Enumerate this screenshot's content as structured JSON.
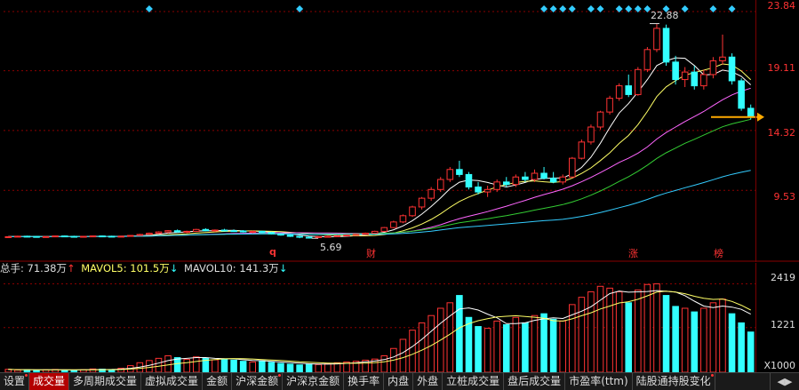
{
  "price_axis": {
    "labels": [
      "23.84",
      "19.11",
      "14.32",
      "9.53"
    ],
    "color": "#ff3333"
  },
  "volume_axis": {
    "labels": [
      "2419",
      "1221",
      "X1000"
    ]
  },
  "annotations": {
    "high_label": "22.88",
    "low_label": "5.69",
    "current_price_hint": "15.4"
  },
  "event_markers": {
    "q": "q",
    "cai": "财",
    "zhang": "涨",
    "bang": "榜"
  },
  "volume_header": {
    "total_label": "总手: 71.38万",
    "total_arrow": "↑",
    "ma5_label": "MAVOL5: 101.5万",
    "ma5_arrow": "↓",
    "ma10_label": "MAVOL10: 141.3万",
    "ma10_arrow": "↓"
  },
  "tabs": [
    {
      "label": "设置",
      "dot": true
    },
    {
      "label": "成交量",
      "active": true
    },
    {
      "label": "多周期成交量"
    },
    {
      "label": "虚拟成交量"
    },
    {
      "label": "金额"
    },
    {
      "label": "沪深金额",
      "dot": true
    },
    {
      "label": "沪深京金额"
    },
    {
      "label": "换手率"
    },
    {
      "label": "内盘"
    },
    {
      "label": "外盘"
    },
    {
      "label": "立桩成交量"
    },
    {
      "label": "盘后成交量"
    },
    {
      "label": "市盈率(ttm)"
    },
    {
      "label": "陆股通持股变化",
      "dot": true
    }
  ],
  "colors": {
    "up": "#ff3333",
    "down": "#33ffff",
    "ma5": "#ffffff",
    "ma10": "#ffff66",
    "ma20": "#ff66ff",
    "ma30": "#33cc33",
    "ma60": "#33ccff",
    "current_arrow": "#ffaa00"
  },
  "chart_data": {
    "type": "candlestick",
    "ylim": [
      4.5,
      24.2
    ],
    "price_ticks": [
      23.84,
      19.11,
      14.32,
      9.53
    ],
    "candles": [
      [
        5.8,
        5.85,
        5.75,
        5.82
      ],
      [
        5.82,
        5.9,
        5.78,
        5.86
      ],
      [
        5.86,
        5.9,
        5.8,
        5.84
      ],
      [
        5.84,
        5.88,
        5.78,
        5.8
      ],
      [
        5.8,
        5.86,
        5.76,
        5.83
      ],
      [
        5.83,
        5.9,
        5.8,
        5.88
      ],
      [
        5.88,
        5.92,
        5.82,
        5.85
      ],
      [
        5.85,
        5.9,
        5.8,
        5.82
      ],
      [
        5.82,
        5.87,
        5.78,
        5.85
      ],
      [
        5.85,
        5.9,
        5.8,
        5.88
      ],
      [
        5.88,
        5.92,
        5.84,
        5.86
      ],
      [
        5.86,
        5.9,
        5.8,
        5.83
      ],
      [
        5.83,
        5.88,
        5.78,
        5.86
      ],
      [
        5.86,
        5.95,
        5.82,
        5.92
      ],
      [
        5.92,
        6.05,
        5.88,
        6.0
      ],
      [
        6.0,
        6.15,
        5.95,
        6.1
      ],
      [
        6.1,
        6.25,
        6.05,
        6.2
      ],
      [
        6.2,
        6.35,
        6.1,
        6.3
      ],
      [
        6.3,
        6.4,
        6.15,
        6.2
      ],
      [
        6.2,
        6.3,
        6.1,
        6.25
      ],
      [
        6.25,
        6.45,
        6.2,
        6.4
      ],
      [
        6.4,
        6.5,
        6.25,
        6.3
      ],
      [
        6.3,
        6.4,
        6.2,
        6.35
      ],
      [
        6.35,
        6.45,
        6.25,
        6.3
      ],
      [
        6.3,
        6.4,
        6.2,
        6.28
      ],
      [
        6.28,
        6.35,
        6.15,
        6.2
      ],
      [
        6.2,
        6.3,
        6.1,
        6.25
      ],
      [
        6.25,
        6.3,
        6.1,
        6.15
      ],
      [
        6.15,
        6.2,
        6.0,
        6.05
      ],
      [
        6.05,
        6.1,
        5.9,
        5.95
      ],
      [
        5.95,
        6.0,
        5.8,
        5.85
      ],
      [
        5.85,
        5.9,
        5.7,
        5.78
      ],
      [
        5.78,
        5.85,
        5.69,
        5.75
      ],
      [
        5.75,
        5.85,
        5.7,
        5.82
      ],
      [
        5.82,
        5.9,
        5.75,
        5.85
      ],
      [
        5.85,
        5.95,
        5.8,
        5.9
      ],
      [
        5.9,
        6.0,
        5.85,
        5.95
      ],
      [
        5.95,
        6.05,
        5.9,
        6.0
      ],
      [
        6.0,
        6.15,
        5.95,
        6.1
      ],
      [
        6.1,
        6.3,
        6.05,
        6.25
      ],
      [
        6.25,
        6.6,
        6.2,
        6.55
      ],
      [
        6.55,
        7.1,
        6.5,
        7.0
      ],
      [
        7.0,
        7.6,
        6.9,
        7.5
      ],
      [
        7.5,
        8.3,
        7.4,
        8.2
      ],
      [
        8.2,
        9.0,
        8.0,
        8.9
      ],
      [
        8.9,
        9.8,
        8.7,
        9.6
      ],
      [
        9.6,
        10.6,
        9.4,
        10.4
      ],
      [
        10.4,
        11.4,
        10.2,
        11.2
      ],
      [
        11.2,
        11.9,
        10.6,
        10.8
      ],
      [
        10.8,
        11.0,
        9.6,
        9.8
      ],
      [
        9.8,
        10.2,
        9.2,
        9.4
      ],
      [
        9.4,
        9.9,
        9.0,
        9.6
      ],
      [
        9.6,
        10.4,
        9.4,
        10.2
      ],
      [
        10.2,
        10.6,
        9.8,
        10.0
      ],
      [
        10.0,
        10.8,
        9.8,
        10.6
      ],
      [
        10.6,
        11.0,
        10.2,
        10.4
      ],
      [
        10.4,
        11.2,
        10.2,
        10.9
      ],
      [
        10.9,
        11.4,
        10.4,
        10.5
      ],
      [
        10.5,
        11.0,
        10.1,
        10.2
      ],
      [
        10.2,
        10.8,
        10.0,
        10.6
      ],
      [
        10.6,
        12.2,
        10.5,
        12.1
      ],
      [
        12.1,
        13.6,
        12.0,
        13.4
      ],
      [
        13.4,
        14.8,
        13.2,
        14.6
      ],
      [
        14.6,
        15.9,
        14.4,
        15.8
      ],
      [
        15.8,
        17.1,
        15.6,
        16.9
      ],
      [
        16.9,
        18.1,
        16.7,
        17.9
      ],
      [
        17.9,
        18.8,
        17.0,
        17.2
      ],
      [
        17.2,
        19.4,
        17.1,
        19.2
      ],
      [
        19.2,
        21.0,
        19.0,
        20.8
      ],
      [
        20.8,
        22.88,
        20.6,
        22.5
      ],
      [
        22.5,
        22.8,
        19.5,
        19.8
      ],
      [
        19.8,
        20.3,
        18.0,
        18.4
      ],
      [
        18.4,
        19.4,
        17.8,
        19.0
      ],
      [
        19.0,
        19.5,
        17.6,
        17.9
      ],
      [
        17.9,
        19.2,
        17.6,
        18.8
      ],
      [
        18.8,
        20.2,
        18.5,
        19.9
      ],
      [
        19.9,
        22.0,
        19.6,
        20.2
      ],
      [
        20.2,
        20.5,
        18.0,
        18.3
      ],
      [
        18.3,
        18.5,
        15.9,
        16.1
      ],
      [
        16.1,
        16.4,
        15.2,
        15.4
      ]
    ],
    "volumes": [
      80,
      60,
      70,
      55,
      65,
      75,
      60,
      55,
      70,
      90,
      85,
      75,
      110,
      180,
      260,
      320,
      380,
      450,
      400,
      350,
      420,
      380,
      340,
      360,
      330,
      300,
      280,
      310,
      270,
      240,
      220,
      200,
      230,
      210,
      240,
      260,
      280,
      300,
      330,
      360,
      450,
      650,
      900,
      1150,
      1350,
      1550,
      1750,
      1900,
      2100,
      1500,
      1250,
      1200,
      1400,
      1300,
      1500,
      1350,
      1550,
      1600,
      1450,
      1400,
      1850,
      2050,
      2200,
      2350,
      2300,
      2200,
      1900,
      2250,
      2400,
      2419,
      2100,
      1800,
      1750,
      1650,
      1750,
      1900,
      2000,
      1600,
      1350,
      1100
    ]
  }
}
